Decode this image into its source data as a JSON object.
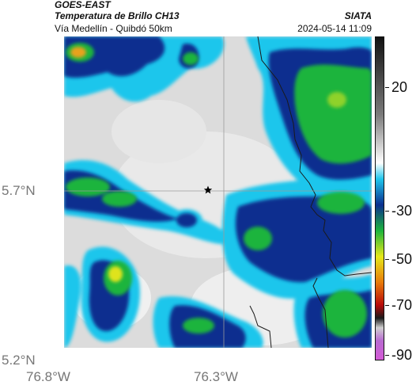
{
  "header": {
    "satellite": "GOES-EAST",
    "product": "Temperatura de Brillo CH13",
    "organization": "SIATA",
    "region": "Vía Medellín - Quibdó 50km",
    "datetime": "2024-05-14 11:09"
  },
  "axes": {
    "lat_labels": [
      "5.7°N",
      "5.2°N"
    ],
    "lon_labels": [
      "76.8°W",
      "76.3°W"
    ]
  },
  "colorbar": {
    "labels": [
      "20",
      "-30",
      "-50",
      "-70",
      "-90"
    ],
    "colors": [
      "#111111",
      "#bdbdbd",
      "#ffffff",
      "#19c3ea",
      "#0a2a8a",
      "#16b53a",
      "#e6e81a",
      "#e87a0a",
      "#b80a0a",
      "#d45ad6"
    ]
  },
  "map": {
    "marker_icon": "star-icon",
    "background_color": "#d8d8d8"
  }
}
